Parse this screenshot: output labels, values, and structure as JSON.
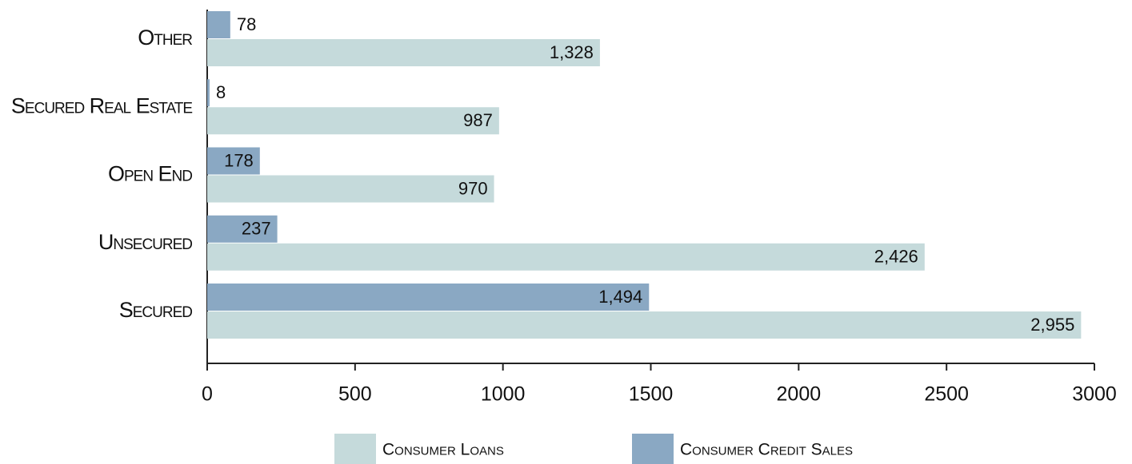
{
  "chart_data": {
    "type": "bar",
    "orientation": "horizontal",
    "categories": [
      "Other",
      "Secured Real Estate",
      "Open End",
      "Unsecured",
      "Secured"
    ],
    "series": [
      {
        "name": "Consumer Loans",
        "color": "#c5dadb",
        "values": [
          1328,
          987,
          970,
          2426,
          2955
        ],
        "value_labels": [
          "1,328",
          "987",
          "970",
          "2,426",
          "2,955"
        ]
      },
      {
        "name": "Consumer Credit Sales",
        "color": "#8aa8c3",
        "values": [
          78,
          8,
          178,
          237,
          1494
        ],
        "value_labels": [
          "78",
          "8",
          "178",
          "237",
          "1,494"
        ]
      }
    ],
    "xlim": [
      0,
      3000
    ],
    "xticks": [
      0,
      500,
      1000,
      1500,
      2000,
      2500,
      3000
    ],
    "grid": false
  }
}
